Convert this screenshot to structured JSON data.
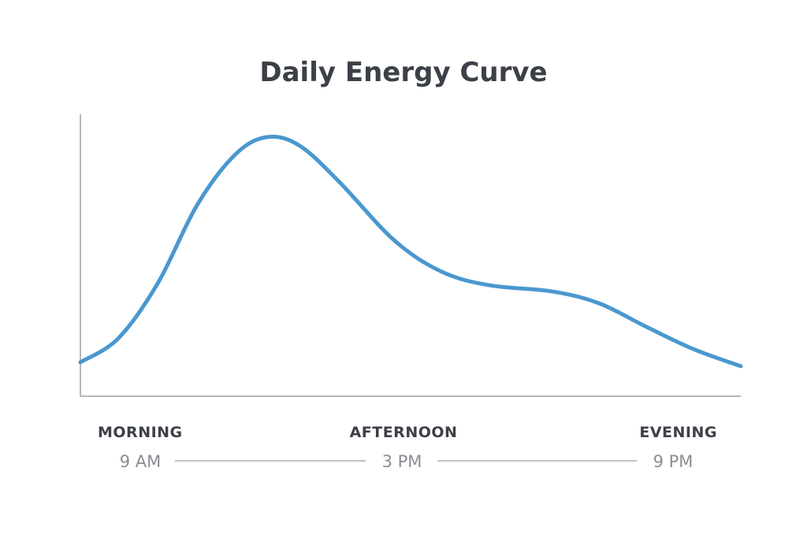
{
  "chart_data": {
    "type": "line",
    "title": "Daily Energy Curve",
    "xlabel": "",
    "ylabel": "",
    "xlim": [
      0,
      100
    ],
    "ylim": [
      0,
      100
    ],
    "grid": false,
    "color": "#4a98cf",
    "series": [
      {
        "name": "Energy",
        "x": [
          0,
          5.7,
          11.7,
          17.7,
          23.6,
          28.4,
          33.2,
          39.1,
          47.5,
          54.7,
          61.9,
          71.4,
          78.5,
          85.7,
          92.8,
          100
        ],
        "y": [
          11.8,
          20.2,
          39.8,
          67.8,
          86,
          91.9,
          88.8,
          76.2,
          55.2,
          44,
          39.2,
          37,
          32.8,
          24.4,
          16.5,
          10.4
        ]
      }
    ],
    "periods": [
      {
        "label": "MORNING",
        "time": "9 AM"
      },
      {
        "label": "AFTERNOON",
        "time": "3 PM"
      },
      {
        "label": "EVENING",
        "time": "9 PM"
      }
    ]
  }
}
